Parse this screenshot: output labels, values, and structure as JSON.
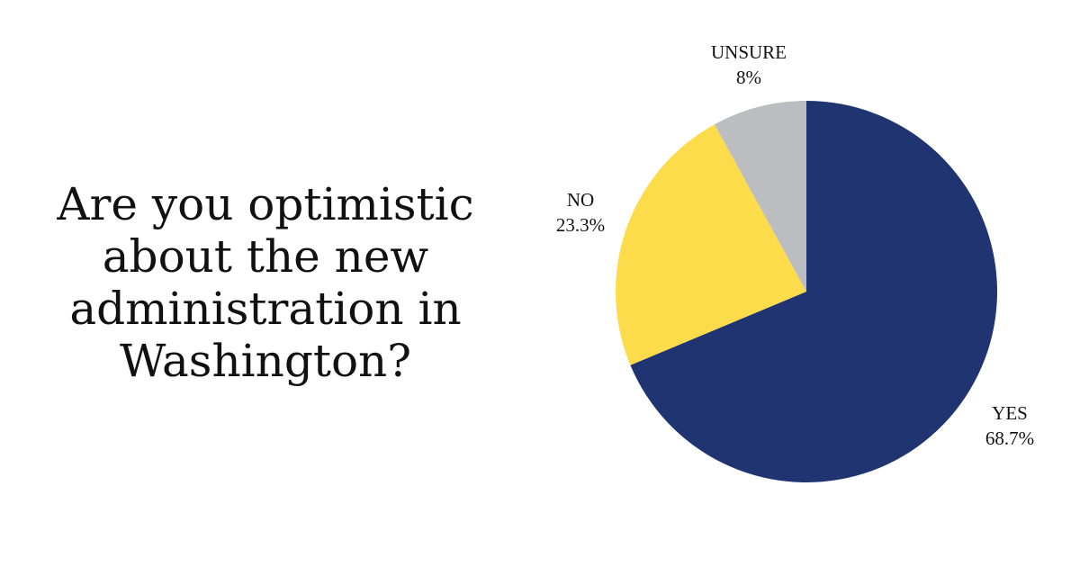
{
  "question": {
    "lines": [
      "Are you optimistic",
      "about the new",
      "administration in",
      "Washington?"
    ]
  },
  "chart_data": {
    "type": "pie",
    "title": "",
    "slices": [
      {
        "label": "YES",
        "value": 68.7,
        "value_label": "68.7%",
        "color": "#1f3470"
      },
      {
        "label": "NO",
        "value": 23.3,
        "value_label": "23.3%",
        "color": "#fddc4b"
      },
      {
        "label": "UNSURE",
        "value": 8,
        "value_label": "8%",
        "color": "#bcbdc1"
      }
    ],
    "start": "12 o'clock",
    "direction": "clockwise",
    "legend": "none"
  }
}
